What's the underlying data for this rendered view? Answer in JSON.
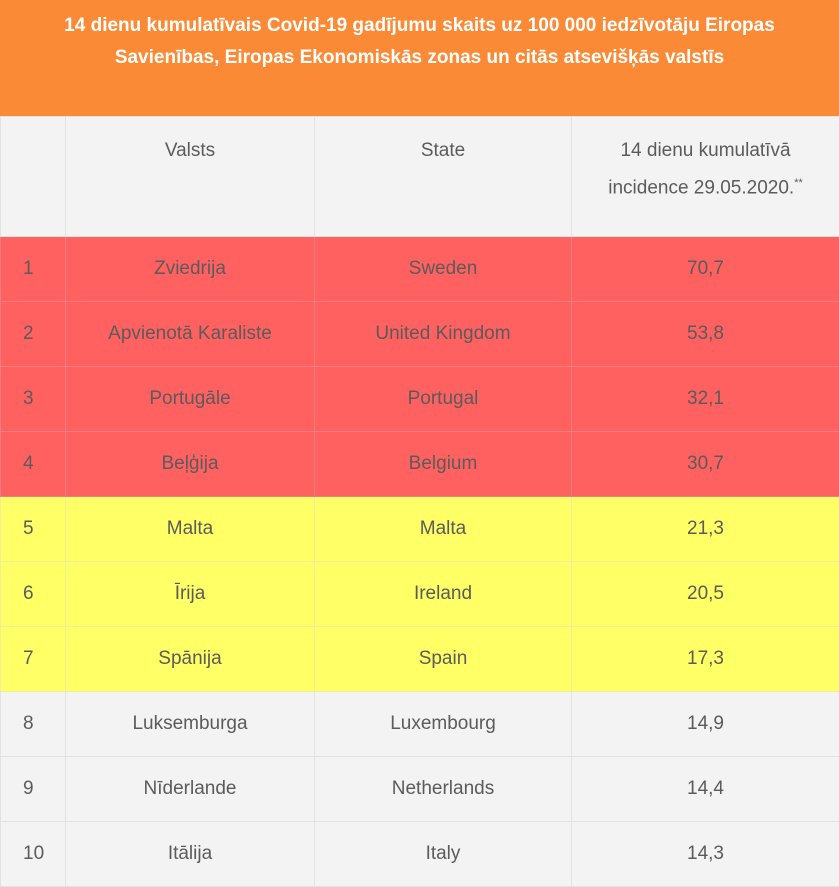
{
  "title": "14 dienu kumulatīvais Covid-19 gadījumu skaits uz 100 000 iedzīvotāju Eiropas Savienības, Eiropas Ekonomiskās zonas un  citās atsevišķās valstīs",
  "headers": {
    "num": "",
    "country_lv": "Valsts",
    "country_en": "State",
    "incidence_line1": "14 dienu kumulatīvā",
    "incidence_line2": "incidence 29.05.2020.",
    "incidence_note": "**"
  },
  "colors": {
    "title_bg": "#fb8a36",
    "red_row": "#ff6161",
    "yellow_row": "#ffff66",
    "grey_row": "#f3f3f3"
  },
  "rows": [
    {
      "num": "1",
      "lv": "Zviedrija",
      "en": "Sweden",
      "value": "70,7",
      "level": "red"
    },
    {
      "num": "2",
      "lv": "Apvienotā Karaliste",
      "en": "United Kingdom",
      "value": "53,8",
      "level": "red"
    },
    {
      "num": "3",
      "lv": "Portugāle",
      "en": "Portugal",
      "value": "32,1",
      "level": "red"
    },
    {
      "num": "4",
      "lv": "Beļģija",
      "en": "Belgium",
      "value": "30,7",
      "level": "red"
    },
    {
      "num": "5",
      "lv": "Malta",
      "en": "Malta",
      "value": "21,3",
      "level": "yellow"
    },
    {
      "num": "6",
      "lv": "Īrija",
      "en": "Ireland",
      "value": "20,5",
      "level": "yellow"
    },
    {
      "num": "7",
      "lv": "Spānija",
      "en": "Spain",
      "value": "17,3",
      "level": "yellow"
    },
    {
      "num": "8",
      "lv": "Luksemburga",
      "en": "Luxembourg",
      "value": "14,9",
      "level": "grey"
    },
    {
      "num": "9",
      "lv": "Nīderlande",
      "en": "Netherlands",
      "value": "14,4",
      "level": "grey"
    },
    {
      "num": "10",
      "lv": "Itālija",
      "en": "Italy",
      "value": "14,3",
      "level": "grey"
    }
  ]
}
